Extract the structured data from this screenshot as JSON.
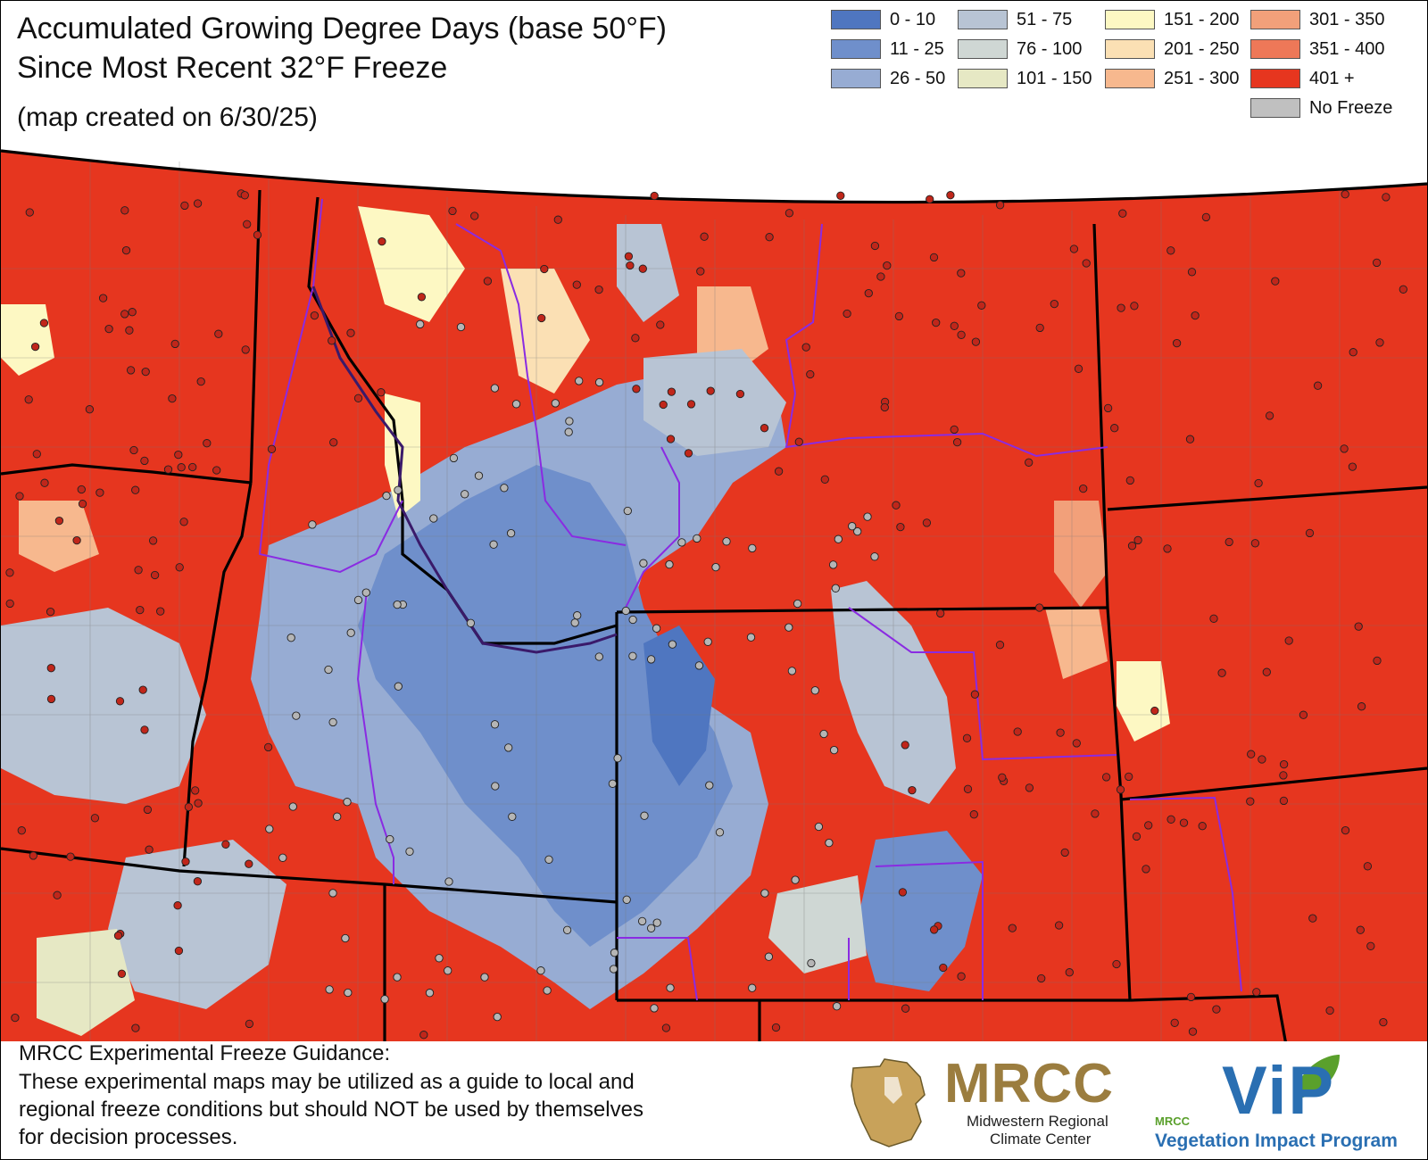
{
  "title": {
    "line1": "Accumulated Growing Degree Days (base 50°F)",
    "line2": "Since Most Recent 32°F Freeze",
    "subtitle": "(map created on 6/30/25)"
  },
  "legend": [
    {
      "label": "0 - 10",
      "color": "#4f76c0"
    },
    {
      "label": "11 - 25",
      "color": "#6f8fcb"
    },
    {
      "label": "26 - 50",
      "color": "#97acd3"
    },
    {
      "label": "51 - 75",
      "color": "#b8c4d4"
    },
    {
      "label": "76 - 100",
      "color": "#cfd7d4"
    },
    {
      "label": "101 - 150",
      "color": "#e6e8c4"
    },
    {
      "label": "151 - 200",
      "color": "#fdf8c3"
    },
    {
      "label": "201 - 250",
      "color": "#fbe0b4"
    },
    {
      "label": "251 - 300",
      "color": "#f7b88e"
    },
    {
      "label": "301 - 350",
      "color": "#f2a07a"
    },
    {
      "label": "351 - 400",
      "color": "#ee7858"
    },
    {
      "label": "401 +",
      "color": "#e6361f"
    },
    {
      "label": "No Freeze",
      "color": "#c0c0c0"
    }
  ],
  "footer": {
    "heading": "MRCC Experimental Freeze Guidance:",
    "lines": [
      "These experimental maps may be utilized as a guide to local and",
      "regional freeze conditions but should NOT be used by themselves",
      "for decision processes."
    ]
  },
  "logos": {
    "mrcc": {
      "name": "MRCC",
      "line1": "Midwestern Regional",
      "line2": "Climate Center",
      "color": "#9b7d3f"
    },
    "vip": {
      "name": "ViP",
      "small": "MRCC",
      "sub": "Vegetation Impact Program",
      "color": "#2a6fb2",
      "leaf_color": "#5aa02c"
    }
  },
  "colors": {
    "background_dominant": "#e6361f",
    "state_border": "#000000",
    "region_border": "#8a2be2",
    "county_line": "#777777",
    "station_dot_hot": "#c0261a",
    "station_dot_cool": "#b5b5b5"
  }
}
